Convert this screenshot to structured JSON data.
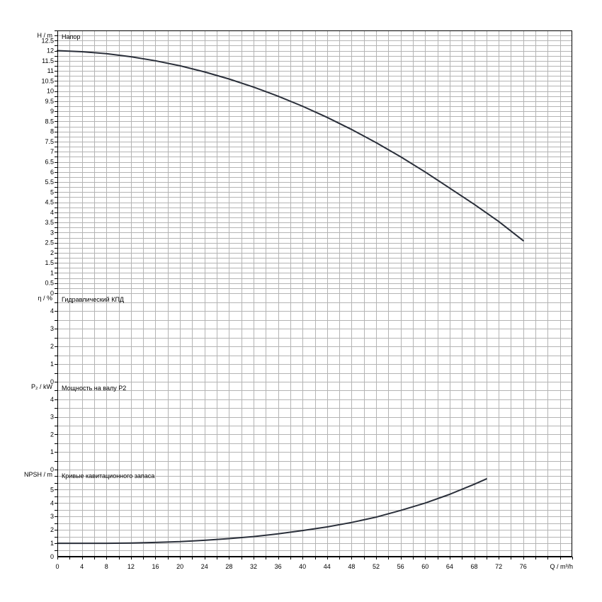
{
  "chart_data": {
    "type": "line",
    "x_axis": {
      "label": "Q / m³/h",
      "range": [
        0,
        84
      ],
      "ticks": [
        "0",
        "4",
        "8",
        "12",
        "16",
        "20",
        "24",
        "28",
        "32",
        "36",
        "40",
        "44",
        "48",
        "52",
        "56",
        "60",
        "64",
        "68",
        "72",
        "76"
      ]
    },
    "panels": [
      {
        "key": "head",
        "title": "Напор",
        "ylabel": "H / m",
        "ylim": [
          0,
          13
        ],
        "ticks": [
          "0",
          "0.5",
          "1",
          "1.5",
          "2",
          "2.5",
          "3",
          "3.5",
          "4",
          "4.5",
          "5",
          "5.5",
          "6",
          "6.5",
          "7",
          "7.5",
          "8",
          "8.5",
          "9",
          "9.5",
          "10",
          "10.5",
          "11",
          "11.5",
          "12",
          "12.5"
        ],
        "series": [
          {
            "x": [
              0,
              4,
              8,
              12,
              16,
              20,
              24,
              28,
              32,
              36,
              40,
              44,
              48,
              52,
              56,
              60,
              64,
              68,
              72,
              76
            ],
            "y": [
              12.0,
              11.95,
              11.85,
              11.7,
              11.5,
              11.25,
              10.95,
              10.6,
              10.2,
              9.75,
              9.25,
              8.7,
              8.1,
              7.45,
              6.75,
              6.0,
              5.2,
              4.4,
              3.55,
              2.6
            ]
          }
        ]
      },
      {
        "key": "efficiency",
        "title": "Гидравлический КПД",
        "ylabel": "η / %",
        "ylim": [
          0,
          5
        ],
        "ticks": [
          "0",
          "1",
          "2",
          "3",
          "4"
        ],
        "series": []
      },
      {
        "key": "power",
        "title": "Мощность на валу P2",
        "ylabel": "P₂ / kW",
        "ylim": [
          0,
          5
        ],
        "ticks": [
          "0",
          "1",
          "2",
          "3",
          "4"
        ],
        "series": []
      },
      {
        "key": "npsh",
        "title": "Кривые кавитационного запаса",
        "ylabel": "NPSH / m",
        "ylim": [
          0,
          6.5
        ],
        "ticks": [
          "0",
          "1",
          "2",
          "3",
          "4",
          "5"
        ],
        "series": [
          {
            "x": [
              0,
              4,
              8,
              12,
              16,
              20,
              24,
              28,
              32,
              36,
              40,
              44,
              48,
              52,
              56,
              60,
              64,
              68,
              70
            ],
            "y": [
              1.0,
              1.0,
              1.0,
              1.02,
              1.06,
              1.12,
              1.22,
              1.35,
              1.5,
              1.7,
              1.95,
              2.22,
              2.55,
              2.95,
              3.45,
              4.0,
              4.65,
              5.4,
              5.8
            ]
          }
        ]
      }
    ],
    "grid": true,
    "legend": "none"
  }
}
